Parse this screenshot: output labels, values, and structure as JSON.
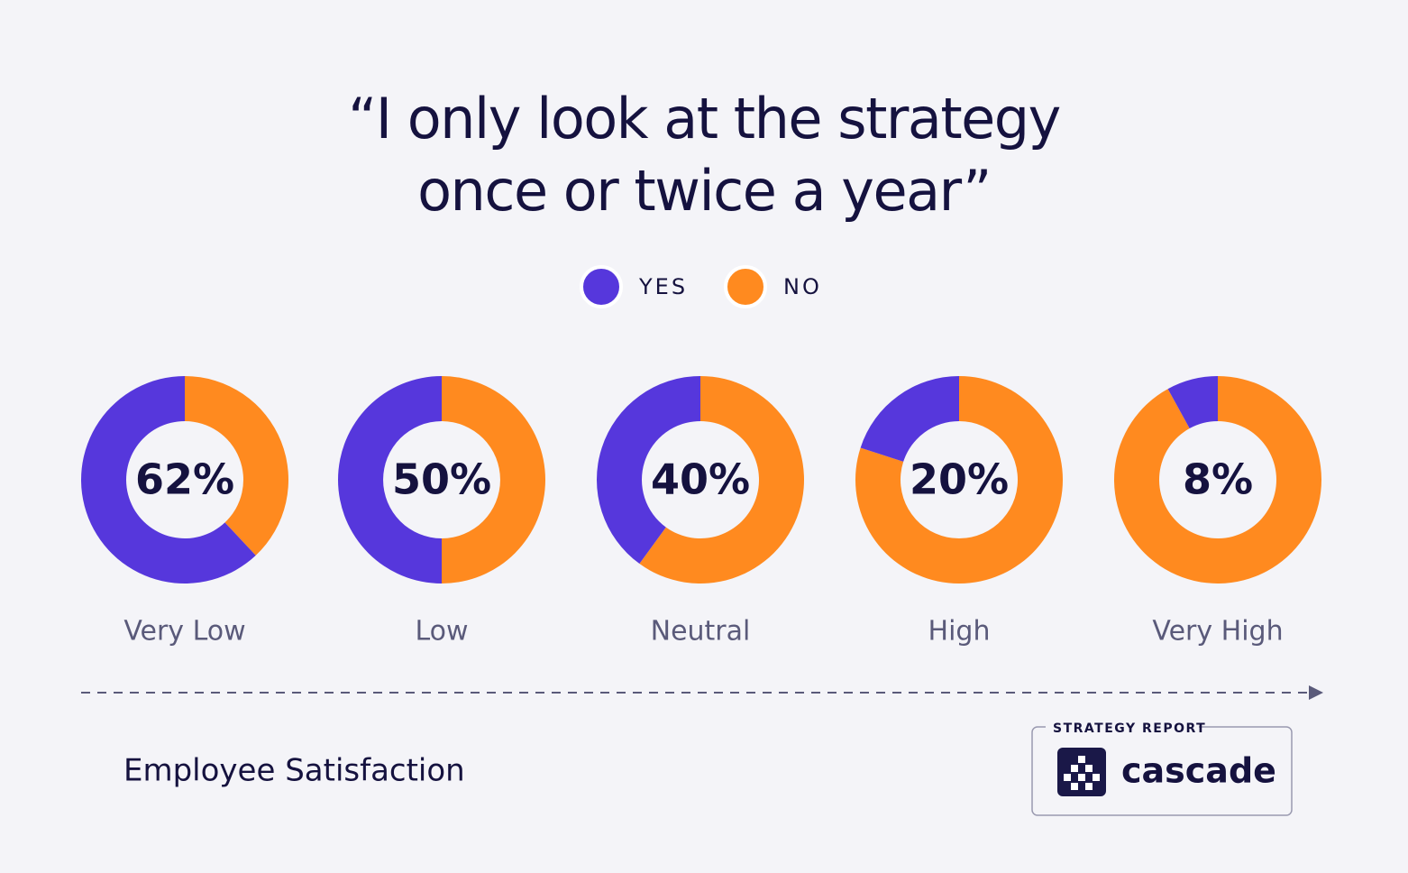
{
  "chart_data": {
    "type": "donut",
    "title": [
      "“I only look at the strategy",
      "once or twice a year”"
    ],
    "categories": [
      "Very Low",
      "Low",
      "Neutral",
      "High",
      "Very High"
    ],
    "series": [
      {
        "name": "YES",
        "color": "#5637dc",
        "values": [
          62,
          50,
          40,
          20,
          8
        ],
        "value_labels": [
          "62%",
          "50%",
          "40%",
          "20%",
          "8%"
        ]
      },
      {
        "name": "NO",
        "color": "#ff8a1f",
        "values": [
          38,
          50,
          60,
          80,
          92
        ]
      }
    ],
    "xlabel": "Employee Satisfaction"
  },
  "badge": {
    "label": "STRATEGY REPORT",
    "brand": "cascade"
  }
}
